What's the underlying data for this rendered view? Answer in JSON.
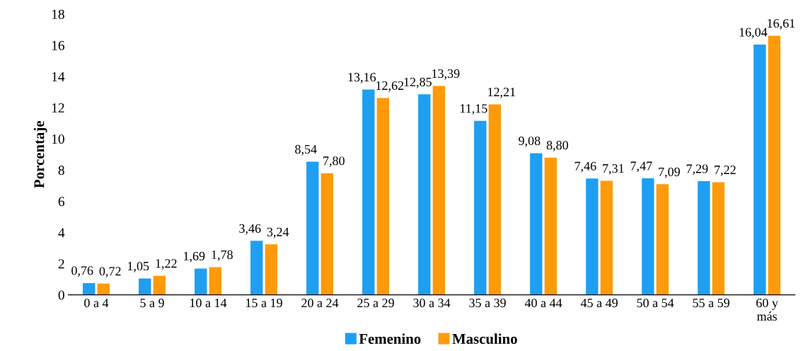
{
  "chart_data": {
    "type": "bar",
    "ylabel": "Porcentaje",
    "categories": [
      "0 a 4",
      "5 a 9",
      "10 a 14",
      "15 a 19",
      "20 a 24",
      "25 a 29",
      "30 a 34",
      "35 a 39",
      "40 a 44",
      "45 a 49",
      "50 a 54",
      "55 a 59",
      "60 y\nmás"
    ],
    "series": [
      {
        "name": "Femenino",
        "color": "#1e9ff2",
        "values": [
          0.76,
          1.05,
          1.69,
          3.46,
          8.54,
          13.16,
          12.85,
          11.15,
          9.08,
          7.46,
          7.47,
          7.29,
          16.04
        ],
        "value_labels": [
          "0,76",
          "1,05",
          "1,69",
          "3,46",
          "8,54",
          "13,16",
          "12,85",
          "11,15",
          "9,08",
          "7,46",
          "7,47",
          "7,29",
          "16,04"
        ]
      },
      {
        "name": "Masculino",
        "color": "#ff9a0a",
        "values": [
          0.72,
          1.22,
          1.78,
          3.24,
          7.8,
          12.62,
          13.39,
          12.21,
          8.8,
          7.31,
          7.09,
          7.22,
          16.61
        ],
        "value_labels": [
          "0,72",
          "1,22",
          "1,78",
          "3,24",
          "7,80",
          "12,62",
          "13,39",
          "12,21",
          "8,80",
          "7,31",
          "7,09",
          "7,22",
          "16,61"
        ]
      }
    ],
    "ylim": [
      0,
      18
    ],
    "yticks": [
      0,
      2,
      4,
      6,
      8,
      10,
      12,
      14,
      16,
      18
    ],
    "grid": false,
    "legend": "bottom"
  }
}
